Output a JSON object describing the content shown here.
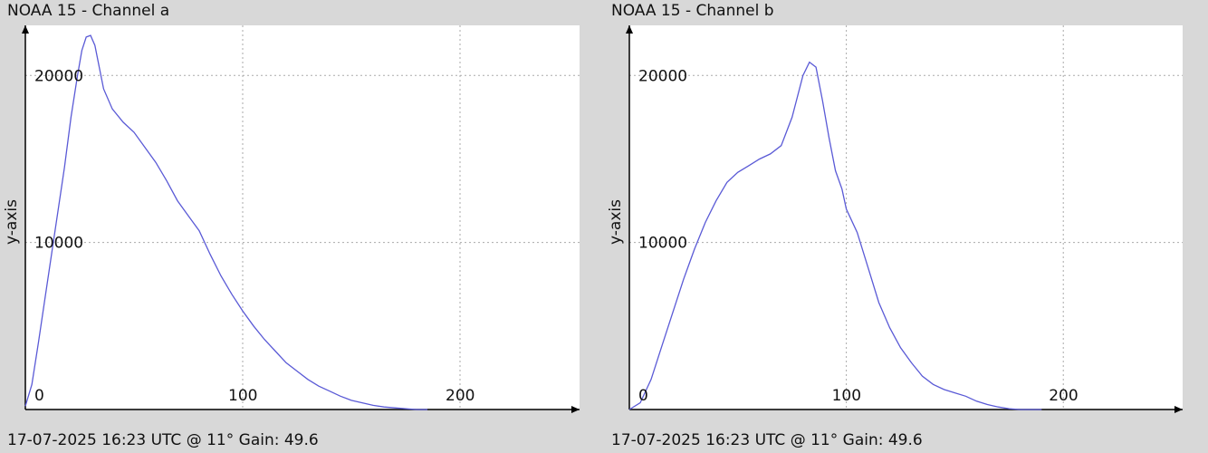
{
  "panels": [
    {
      "title": "NOAA 15 - Channel a",
      "footer": "17-07-2025 16:23 UTC @ 11° Gain: 49.6"
    },
    {
      "title": "NOAA 15 - Channel b",
      "footer": "17-07-2025 16:23 UTC @ 11° Gain: 49.6"
    }
  ],
  "colors": {
    "line": "#5a5ad6",
    "background": "#d8d8d8",
    "plot_bg": "#ffffff"
  },
  "chart_data": [
    {
      "type": "line",
      "title": "NOAA 15 - Channel a",
      "xlabel": "",
      "ylabel": "y-axis",
      "xlim": [
        0,
        255
      ],
      "ylim": [
        0,
        23000
      ],
      "x_ticks": [
        0,
        100,
        200
      ],
      "y_ticks": [
        10000,
        20000
      ],
      "grid": true,
      "series": [
        {
          "x": [
            0,
            3,
            6,
            10,
            14,
            18,
            21,
            24,
            26,
            28,
            30,
            32,
            34,
            36,
            40,
            45,
            50,
            55,
            60,
            65,
            70,
            75,
            80,
            85,
            90,
            95,
            100,
            105,
            110,
            115,
            120,
            125,
            130,
            135,
            140,
            145,
            150,
            155,
            160,
            165,
            170,
            175,
            180,
            185
          ],
          "y": [
            200,
            1500,
            4000,
            7500,
            11000,
            14500,
            17500,
            20000,
            21500,
            22300,
            22400,
            21800,
            20500,
            19200,
            18000,
            17200,
            16600,
            15700,
            14800,
            13700,
            12500,
            11600,
            10700,
            9300,
            8000,
            6900,
            5900,
            5000,
            4200,
            3500,
            2800,
            2300,
            1800,
            1400,
            1100,
            800,
            550,
            400,
            250,
            150,
            100,
            50,
            0,
            0
          ]
        }
      ]
    },
    {
      "type": "line",
      "title": "NOAA 15 - Channel b",
      "xlabel": "",
      "ylabel": "y-axis",
      "xlim": [
        0,
        255
      ],
      "ylim": [
        0,
        23000
      ],
      "x_ticks": [
        0,
        100,
        200
      ],
      "y_ticks": [
        10000,
        20000
      ],
      "grid": true,
      "series": [
        {
          "x": [
            0,
            5,
            10,
            15,
            20,
            25,
            30,
            35,
            40,
            45,
            50,
            55,
            60,
            65,
            70,
            75,
            80,
            83,
            86,
            89,
            92,
            95,
            98,
            100,
            105,
            110,
            115,
            120,
            125,
            130,
            135,
            140,
            145,
            150,
            155,
            160,
            165,
            170,
            175,
            180,
            185,
            190
          ],
          "y": [
            0,
            400,
            1800,
            3800,
            5800,
            7800,
            9600,
            11200,
            12500,
            13600,
            14200,
            14600,
            15000,
            15300,
            15800,
            17500,
            20000,
            20800,
            20500,
            18500,
            16300,
            14300,
            13200,
            12000,
            10600,
            8500,
            6400,
            4900,
            3700,
            2800,
            2000,
            1500,
            1200,
            1000,
            800,
            500,
            300,
            150,
            50,
            0,
            0,
            0
          ]
        }
      ]
    }
  ]
}
